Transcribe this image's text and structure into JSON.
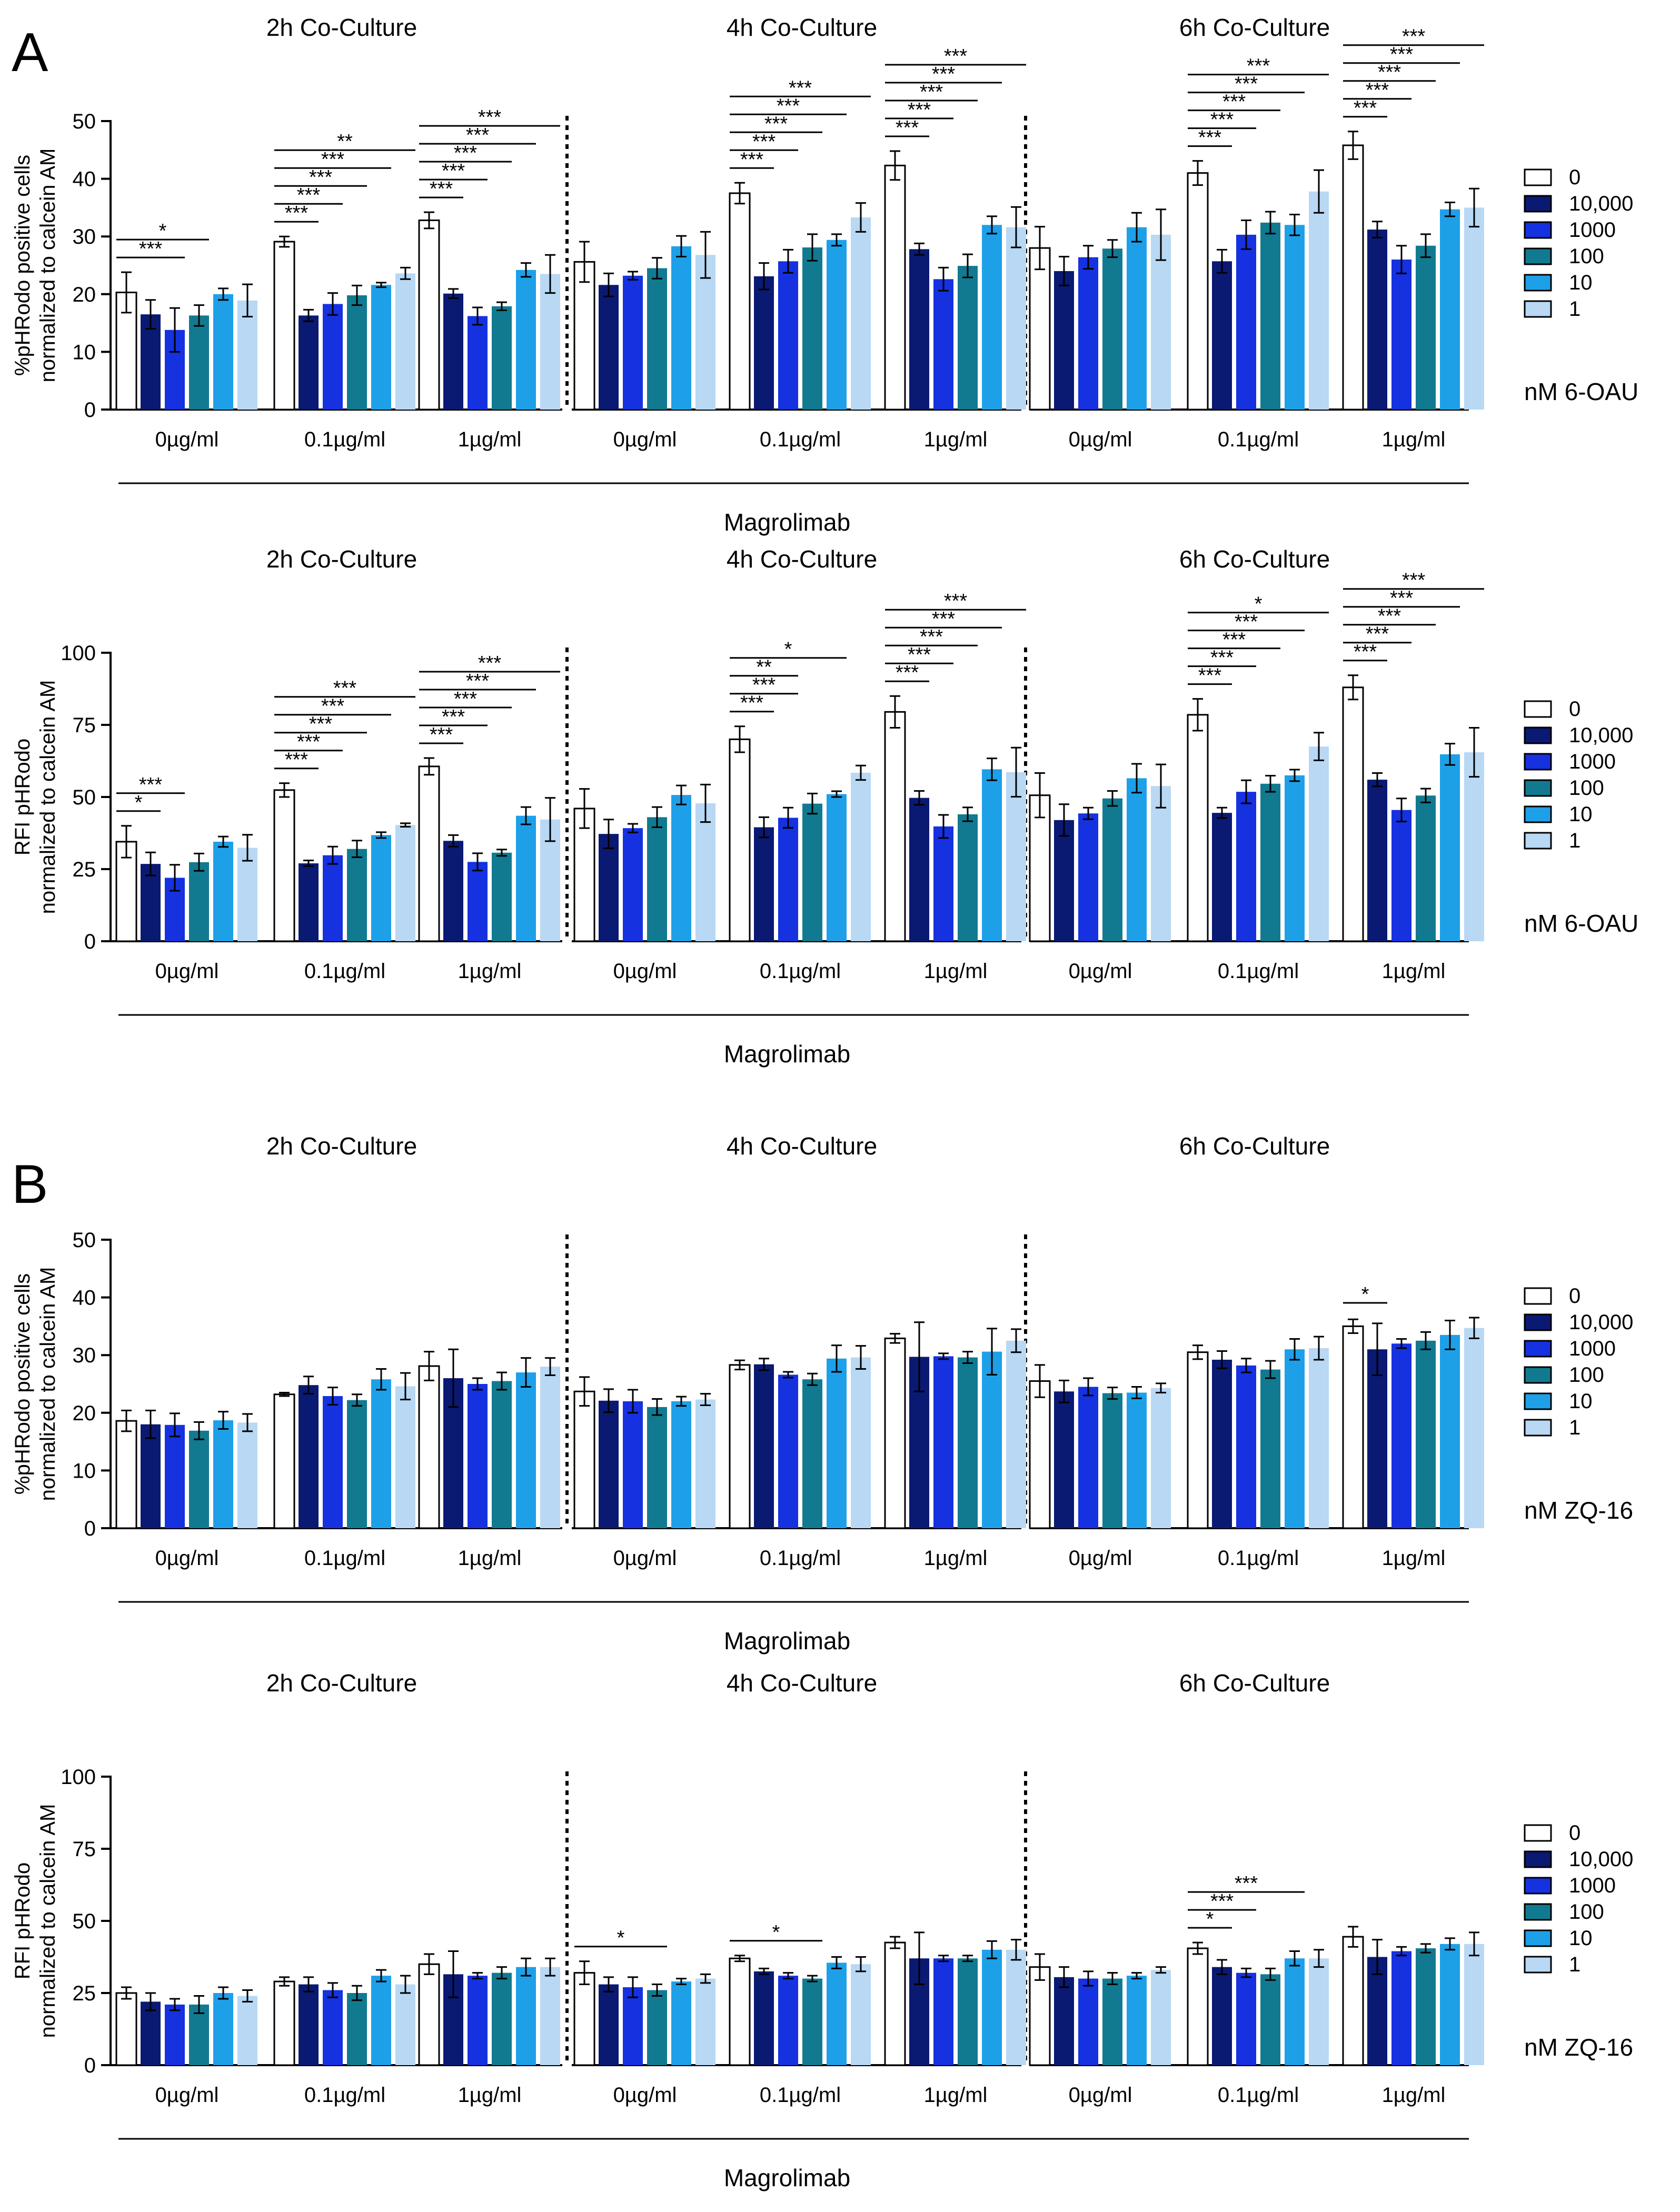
{
  "colors": {
    "0": "#ffffff",
    "10,000": "#0a1972",
    "1000": "#1531e0",
    "100": "#117a90",
    "10": "#1ea0e8",
    "1": "#b8d8f4"
  },
  "panels": [
    {
      "letter": "A",
      "legend_title": "nM 6-OAU"
    },
    {
      "letter": "B",
      "legend_title": "nM ZQ-16"
    }
  ],
  "chart_data": [
    {
      "type": "bar",
      "panel": "A",
      "ylabel": "%pHRodo positive cells\nnormalized to calcein AM",
      "ylim": [
        0,
        50
      ],
      "yticks": [
        0,
        10,
        20,
        30,
        40,
        50
      ],
      "xlabel": "Magrolimab",
      "legend": {
        "title": "nM 6-OAU",
        "entries": [
          "0",
          "10,000",
          "1000",
          "100",
          "10",
          "1"
        ]
      },
      "titles": [
        "2h Co-Culture",
        "4h Co-Culture",
        "6h Co-Culture"
      ],
      "categories": [
        "0µg/ml",
        "0.1µg/ml",
        "1µg/ml"
      ],
      "values": [
        [
          [
            20.3,
            16.5,
            13.8,
            16.3,
            20.0,
            18.9
          ],
          [
            29.1,
            16.3,
            18.3,
            19.8,
            21.6,
            23.6
          ],
          [
            32.8,
            20.1,
            16.2,
            17.9,
            24.2,
            23.5
          ]
        ],
        [
          [
            25.6,
            21.6,
            23.2,
            24.5,
            28.3,
            26.8
          ],
          [
            37.5,
            23.1,
            25.7,
            28.1,
            29.4,
            33.3
          ],
          [
            42.3,
            27.8,
            22.6,
            24.9,
            32.0,
            31.6
          ]
        ],
        [
          [
            28.0,
            24.0,
            26.4,
            27.9,
            31.6,
            30.3
          ],
          [
            41.0,
            25.7,
            30.3,
            32.4,
            32.0,
            37.8
          ],
          [
            45.8,
            31.2,
            26.0,
            28.4,
            34.7,
            35.0
          ]
        ]
      ],
      "errors": [
        [
          [
            3.5,
            2.5,
            3.8,
            1.8,
            1.0,
            2.8
          ],
          [
            0.9,
            1.0,
            1.9,
            1.7,
            0.4,
            1.0
          ],
          [
            1.4,
            0.8,
            1.5,
            0.7,
            1.2,
            3.3
          ]
        ],
        [
          [
            3.5,
            2.0,
            0.7,
            1.8,
            1.8,
            4.0
          ],
          [
            1.8,
            2.3,
            2.0,
            2.3,
            1.0,
            2.5
          ],
          [
            2.5,
            1.0,
            2.0,
            2.0,
            1.5,
            3.5
          ]
        ],
        [
          [
            3.7,
            2.5,
            2.0,
            1.5,
            2.5,
            4.4
          ],
          [
            2.1,
            2.0,
            2.5,
            1.9,
            1.8,
            3.7
          ],
          [
            2.4,
            1.4,
            2.4,
            2.0,
            1.2,
            3.3
          ]
        ]
      ],
      "significance": [
        [
          [
            [
              "*",
              0,
              3
            ],
            [
              "***",
              0,
              2
            ]
          ],
          [
            [
              "**",
              0,
              5
            ],
            [
              "***",
              0,
              4
            ],
            [
              "***",
              0,
              3
            ],
            [
              "***",
              0,
              2
            ],
            [
              "***",
              0,
              1
            ]
          ],
          [
            [
              "***",
              0,
              5
            ],
            [
              "***",
              0,
              4
            ],
            [
              "***",
              0,
              3
            ],
            [
              "***",
              0,
              2
            ],
            [
              "***",
              0,
              1
            ]
          ]
        ],
        [
          [],
          [
            [
              "***",
              0,
              5
            ],
            [
              "***",
              0,
              4
            ],
            [
              "***",
              0,
              3
            ],
            [
              "***",
              0,
              2
            ],
            [
              "***",
              0,
              1
            ]
          ],
          [
            [
              "***",
              0,
              5
            ],
            [
              "***",
              0,
              4
            ],
            [
              "***",
              0,
              3
            ],
            [
              "***",
              0,
              2
            ],
            [
              "***",
              0,
              1
            ]
          ]
        ],
        [
          [],
          [
            [
              "***",
              0,
              5
            ],
            [
              "***",
              0,
              4
            ],
            [
              "***",
              0,
              3
            ],
            [
              "***",
              0,
              2
            ],
            [
              "***",
              0,
              1
            ]
          ],
          [
            [
              "***",
              0,
              5
            ],
            [
              "***",
              0,
              4
            ],
            [
              "***",
              0,
              3
            ],
            [
              "***",
              0,
              2
            ],
            [
              "***",
              0,
              1
            ]
          ]
        ]
      ]
    },
    {
      "type": "bar",
      "panel": "A",
      "ylabel": "RFI pHRodo\nnormalized to calcein AM",
      "ylim": [
        0,
        100
      ],
      "yticks": [
        0,
        25,
        50,
        75,
        100
      ],
      "xlabel": "Magrolimab",
      "legend": {
        "title": "nM 6-OAU",
        "entries": [
          "0",
          "10,000",
          "1000",
          "100",
          "10",
          "1"
        ]
      },
      "titles": [
        "2h Co-Culture",
        "4h Co-Culture",
        "6h Co-Culture"
      ],
      "categories": [
        "0µg/ml",
        "0.1µg/ml",
        "1µg/ml"
      ],
      "values": [
        [
          [
            34.5,
            26.8,
            22.0,
            27.4,
            34.5,
            32.4
          ],
          [
            52.4,
            27.0,
            29.8,
            32.0,
            36.8,
            40.3
          ],
          [
            60.6,
            34.8,
            27.5,
            30.7,
            43.5,
            42.2
          ]
        ],
        [
          [
            46.0,
            37.2,
            39.2,
            43.0,
            50.7,
            47.8
          ],
          [
            70.0,
            39.5,
            42.8,
            47.7,
            51.0,
            58.4
          ],
          [
            79.5,
            49.7,
            39.8,
            44.0,
            59.6,
            58.6
          ]
        ],
        [
          [
            50.6,
            42.0,
            44.3,
            49.5,
            56.5,
            53.8
          ],
          [
            78.5,
            44.5,
            51.8,
            54.6,
            57.5,
            67.5
          ],
          [
            88.0,
            56.0,
            45.5,
            50.5,
            64.8,
            65.5
          ]
        ]
      ],
      "errors": [
        [
          [
            5.5,
            4.0,
            4.5,
            3.0,
            1.8,
            4.5
          ],
          [
            2.4,
            1.0,
            3.0,
            2.9,
            1.0,
            0.6
          ],
          [
            2.9,
            2.0,
            3.0,
            1.1,
            3.0,
            7.5
          ]
        ],
        [
          [
            6.8,
            5.0,
            1.5,
            3.5,
            3.3,
            6.5
          ],
          [
            4.5,
            3.5,
            3.5,
            3.5,
            1.0,
            2.5
          ],
          [
            5.5,
            2.4,
            4.0,
            2.4,
            3.8,
            8.5
          ]
        ],
        [
          [
            7.7,
            5.5,
            2.0,
            2.6,
            5.0,
            7.5
          ],
          [
            5.5,
            1.8,
            4.0,
            2.8,
            2.0,
            4.8
          ],
          [
            4.2,
            2.3,
            4.0,
            2.4,
            3.7,
            8.5
          ]
        ]
      ],
      "significance": [
        [
          [
            [
              "***",
              0,
              2
            ],
            [
              "*",
              0,
              1
            ]
          ],
          [
            [
              "***",
              0,
              5
            ],
            [
              "***",
              0,
              4
            ],
            [
              "***",
              0,
              3
            ],
            [
              "***",
              0,
              2
            ],
            [
              "***",
              0,
              1
            ]
          ],
          [
            [
              "***",
              0,
              5
            ],
            [
              "***",
              0,
              4
            ],
            [
              "***",
              0,
              3
            ],
            [
              "***",
              0,
              2
            ],
            [
              "***",
              0,
              1
            ]
          ]
        ],
        [
          [],
          [
            [
              "*",
              0,
              4
            ],
            [
              "**",
              0,
              2
            ],
            [
              "***",
              0,
              2
            ],
            [
              "***",
              0,
              1
            ]
          ],
          [
            [
              "***",
              0,
              5
            ],
            [
              "***",
              0,
              4
            ],
            [
              "***",
              0,
              3
            ],
            [
              "***",
              0,
              2
            ],
            [
              "***",
              0,
              1
            ]
          ]
        ],
        [
          [],
          [
            [
              "*",
              0,
              5
            ],
            [
              "***",
              0,
              4
            ],
            [
              "***",
              0,
              3
            ],
            [
              "***",
              0,
              2
            ],
            [
              "***",
              0,
              1
            ]
          ],
          [
            [
              "***",
              0,
              5
            ],
            [
              "***",
              0,
              4
            ],
            [
              "***",
              0,
              3
            ],
            [
              "***",
              0,
              2
            ],
            [
              "***",
              0,
              1
            ]
          ]
        ]
      ]
    },
    {
      "type": "bar",
      "panel": "B",
      "ylabel": "%pHRodo positive cells\nnormalized to calcein AM",
      "ylim": [
        0,
        50
      ],
      "yticks": [
        0,
        10,
        20,
        30,
        40,
        50
      ],
      "xlabel": "Magrolimab",
      "legend": {
        "title": "nM ZQ-16",
        "entries": [
          "0",
          "10,000",
          "1000",
          "100",
          "10",
          "1"
        ]
      },
      "titles": [
        "2h Co-Culture",
        "4h Co-Culture",
        "6h Co-Culture"
      ],
      "categories": [
        "0µg/ml",
        "0.1µg/ml",
        "1µg/ml"
      ],
      "values": [
        [
          [
            18.6,
            18.0,
            17.9,
            16.9,
            18.7,
            18.3
          ],
          [
            23.2,
            24.8,
            22.9,
            22.2,
            25.8,
            24.6
          ],
          [
            28.1,
            26.0,
            25.0,
            25.5,
            27.0,
            28.0
          ]
        ],
        [
          [
            23.7,
            22.1,
            22.0,
            21.0,
            22.0,
            22.3
          ],
          [
            28.3,
            28.4,
            26.6,
            25.8,
            29.4,
            29.6
          ],
          [
            32.9,
            29.7,
            29.8,
            29.6,
            30.6,
            32.5
          ]
        ],
        [
          [
            25.5,
            23.7,
            24.5,
            23.4,
            23.5,
            24.3
          ],
          [
            30.5,
            29.2,
            28.2,
            27.5,
            31.0,
            31.2
          ],
          [
            35.0,
            31.0,
            32.0,
            32.5,
            33.5,
            34.7
          ]
        ]
      ],
      "errors": [
        [
          [
            1.8,
            2.4,
            2.0,
            1.5,
            1.5,
            1.5
          ],
          [
            0.3,
            1.5,
            1.5,
            1.0,
            1.8,
            2.3
          ],
          [
            2.5,
            5.0,
            1.0,
            1.5,
            2.5,
            1.5
          ]
        ],
        [
          [
            2.5,
            2.0,
            2.0,
            1.4,
            0.8,
            1.0
          ],
          [
            0.8,
            1.0,
            0.5,
            1.0,
            2.3,
            2.0
          ],
          [
            0.8,
            6.0,
            0.5,
            1.0,
            4.0,
            2.0
          ]
        ],
        [
          [
            2.8,
            1.9,
            1.5,
            1.0,
            1.0,
            0.8
          ],
          [
            1.2,
            1.5,
            1.2,
            1.5,
            1.8,
            2.0
          ],
          [
            1.2,
            4.5,
            0.8,
            1.5,
            2.5,
            1.8
          ]
        ]
      ],
      "significance": [
        [
          [],
          [],
          []
        ],
        [
          [],
          [],
          []
        ],
        [
          [],
          [],
          [
            [
              "*",
              0,
              1
            ]
          ]
        ]
      ]
    },
    {
      "type": "bar",
      "panel": "B",
      "ylabel": "RFI pHRodo\nnormalized to calcein AM",
      "ylim": [
        0,
        100
      ],
      "yticks": [
        0,
        25,
        50,
        75,
        100
      ],
      "xlabel": "Magrolimab",
      "legend": {
        "title": "nM ZQ-16",
        "entries": [
          "0",
          "10,000",
          "1000",
          "100",
          "10",
          "1"
        ]
      },
      "titles": [
        "2h Co-Culture",
        "4h Co-Culture",
        "6h Co-Culture"
      ],
      "categories": [
        "0µg/ml",
        "0.1µg/ml",
        "1µg/ml"
      ],
      "values": [
        [
          [
            25.0,
            22.0,
            21.0,
            21.0,
            25.0,
            24.0
          ],
          [
            29.0,
            28.0,
            26.0,
            25.0,
            31.0,
            28.0
          ],
          [
            35.0,
            31.5,
            31.0,
            32.0,
            34.0,
            34.0
          ]
        ],
        [
          [
            32.0,
            28.0,
            27.0,
            26.0,
            29.0,
            30.0
          ],
          [
            37.0,
            32.5,
            31.0,
            30.0,
            35.5,
            35.0
          ],
          [
            42.5,
            37.0,
            37.0,
            37.0,
            40.0,
            40.0
          ]
        ],
        [
          [
            34.0,
            30.5,
            30.0,
            30.0,
            31.0,
            33.0
          ],
          [
            40.5,
            34.0,
            32.0,
            31.5,
            37.0,
            37.0
          ],
          [
            44.5,
            37.5,
            39.5,
            40.5,
            42.0,
            42.0
          ]
        ]
      ],
      "errors": [
        [
          [
            2.0,
            3.0,
            2.0,
            3.0,
            2.0,
            2.0
          ],
          [
            1.5,
            2.5,
            2.5,
            2.5,
            2.0,
            3.0
          ],
          [
            3.5,
            8.0,
            1.0,
            2.0,
            3.0,
            3.0
          ]
        ],
        [
          [
            4.0,
            2.5,
            3.5,
            2.0,
            1.0,
            1.5
          ],
          [
            1.0,
            1.0,
            1.0,
            1.0,
            2.0,
            2.5
          ],
          [
            2.0,
            9.0,
            1.0,
            1.0,
            3.0,
            3.5
          ]
        ],
        [
          [
            4.5,
            3.5,
            2.5,
            2.0,
            1.0,
            1.0
          ],
          [
            2.0,
            2.5,
            1.5,
            2.0,
            2.5,
            3.0
          ],
          [
            3.5,
            6.0,
            1.5,
            1.5,
            2.0,
            4.0
          ]
        ]
      ],
      "significance": [
        [
          [],
          [],
          []
        ],
        [
          [
            [
              "*",
              0,
              3
            ]
          ],
          [
            [
              "*",
              0,
              3
            ]
          ],
          []
        ],
        [
          [],
          [
            [
              "***",
              0,
              4
            ],
            [
              "***",
              0,
              2
            ],
            [
              "*",
              0,
              1
            ]
          ],
          []
        ]
      ]
    }
  ]
}
